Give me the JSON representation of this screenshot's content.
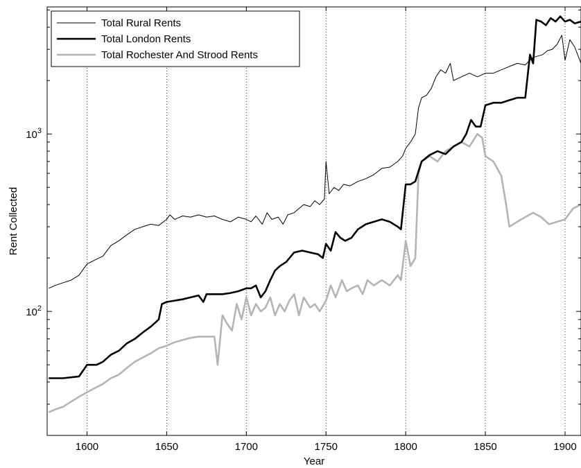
{
  "chart_data": {
    "type": "line",
    "title": "",
    "xlabel": "Year",
    "ylabel": "Rent Collected",
    "xlim": [
      1575,
      1910
    ],
    "ylim": [
      20,
      5200
    ],
    "yscale": "log",
    "x_ticks": [
      1600,
      1650,
      1700,
      1750,
      1800,
      1850,
      1900
    ],
    "x_tick_labels": [
      "1600",
      "1650",
      "1700",
      "1750",
      "1800",
      "1850",
      "1900"
    ],
    "y_ticks": [
      {
        "value": 100,
        "base": "10",
        "exp": "2"
      },
      {
        "value": 1000,
        "base": "10",
        "exp": "3"
      }
    ],
    "grid": "vertical dotted at x ticks",
    "legend_position": "top-left",
    "series": [
      {
        "name": "Total Rural Rents",
        "color": "#000000",
        "style": "thin",
        "x": [
          1576,
          1580,
          1585,
          1590,
          1595,
          1600,
          1605,
          1610,
          1615,
          1620,
          1625,
          1630,
          1635,
          1640,
          1645,
          1650,
          1652,
          1655,
          1660,
          1665,
          1670,
          1675,
          1680,
          1685,
          1690,
          1695,
          1700,
          1703,
          1706,
          1710,
          1713,
          1716,
          1720,
          1723,
          1726,
          1730,
          1733,
          1736,
          1740,
          1743,
          1746,
          1749,
          1750,
          1752,
          1755,
          1758,
          1761,
          1765,
          1770,
          1775,
          1780,
          1785,
          1790,
          1795,
          1798,
          1800,
          1803,
          1806,
          1808,
          1810,
          1813,
          1816,
          1819,
          1822,
          1825,
          1828,
          1830,
          1835,
          1840,
          1845,
          1850,
          1855,
          1860,
          1865,
          1870,
          1875,
          1878,
          1880,
          1883,
          1886,
          1889,
          1892,
          1895,
          1898,
          1900,
          1903,
          1906,
          1910
        ],
        "values": [
          135,
          140,
          145,
          150,
          160,
          185,
          195,
          205,
          235,
          250,
          270,
          290,
          300,
          310,
          305,
          330,
          350,
          330,
          345,
          340,
          350,
          340,
          345,
          330,
          320,
          340,
          330,
          320,
          345,
          310,
          360,
          330,
          340,
          310,
          350,
          360,
          380,
          400,
          390,
          420,
          400,
          430,
          700,
          460,
          500,
          480,
          520,
          510,
          540,
          560,
          590,
          640,
          650,
          700,
          750,
          830,
          900,
          1000,
          1400,
          1600,
          1650,
          1800,
          2100,
          2300,
          2200,
          2500,
          2000,
          2100,
          2200,
          2100,
          2200,
          2200,
          2300,
          2400,
          2500,
          2450,
          2600,
          2700,
          2750,
          2800,
          2950,
          3000,
          3200,
          3600,
          2600,
          3400,
          3100,
          2500
        ]
      },
      {
        "name": "Total London Rents",
        "color": "#000000",
        "style": "thick",
        "x": [
          1576,
          1585,
          1595,
          1598,
          1600,
          1606,
          1610,
          1615,
          1620,
          1625,
          1630,
          1635,
          1640,
          1645,
          1647,
          1650,
          1655,
          1660,
          1665,
          1670,
          1673,
          1675,
          1680,
          1685,
          1690,
          1695,
          1700,
          1703,
          1706,
          1709,
          1712,
          1715,
          1718,
          1721,
          1725,
          1730,
          1735,
          1740,
          1745,
          1748,
          1750,
          1753,
          1756,
          1759,
          1762,
          1766,
          1770,
          1775,
          1780,
          1785,
          1790,
          1795,
          1797,
          1800,
          1803,
          1806,
          1810,
          1815,
          1820,
          1825,
          1830,
          1835,
          1838,
          1841,
          1844,
          1847,
          1850,
          1855,
          1860,
          1865,
          1870,
          1875,
          1878,
          1880,
          1882,
          1885,
          1888,
          1891,
          1894,
          1897,
          1900,
          1903,
          1906,
          1910
        ],
        "values": [
          42,
          42,
          43,
          47,
          50,
          50,
          52,
          57,
          60,
          66,
          70,
          76,
          82,
          90,
          110,
          113,
          115,
          117,
          120,
          123,
          113,
          125,
          125,
          125,
          127,
          130,
          135,
          135,
          140,
          120,
          130,
          150,
          170,
          180,
          190,
          215,
          220,
          215,
          210,
          200,
          240,
          220,
          280,
          260,
          250,
          260,
          290,
          310,
          320,
          330,
          320,
          300,
          290,
          520,
          520,
          540,
          700,
          760,
          800,
          770,
          850,
          900,
          1000,
          1200,
          1100,
          1100,
          1450,
          1500,
          1500,
          1550,
          1600,
          1600,
          2800,
          2500,
          4400,
          4300,
          4100,
          4500,
          4300,
          4600,
          4300,
          4400,
          4200,
          4300
        ]
      },
      {
        "name": "Total Rochester And Strood Rents",
        "color": "#b4b4b4",
        "style": "thick",
        "x": [
          1576,
          1580,
          1585,
          1590,
          1595,
          1600,
          1605,
          1610,
          1615,
          1620,
          1625,
          1630,
          1635,
          1640,
          1645,
          1650,
          1655,
          1660,
          1665,
          1670,
          1675,
          1680,
          1682,
          1685,
          1688,
          1691,
          1694,
          1697,
          1700,
          1703,
          1706,
          1709,
          1712,
          1715,
          1718,
          1721,
          1724,
          1727,
          1730,
          1733,
          1736,
          1740,
          1743,
          1746,
          1750,
          1753,
          1756,
          1760,
          1763,
          1766,
          1770,
          1773,
          1776,
          1780,
          1785,
          1790,
          1795,
          1797,
          1800,
          1803,
          1806,
          1808,
          1810,
          1815,
          1820,
          1825,
          1830,
          1835,
          1840,
          1845,
          1848,
          1850,
          1855,
          1860,
          1863,
          1865,
          1870,
          1875,
          1880,
          1885,
          1890,
          1895,
          1900,
          1905,
          1910
        ],
        "values": [
          27,
          28,
          29,
          31,
          33,
          35,
          37,
          39,
          42,
          44,
          48,
          52,
          55,
          58,
          62,
          64,
          67,
          69,
          71,
          72,
          72,
          72,
          50,
          95,
          85,
          78,
          110,
          90,
          120,
          95,
          110,
          100,
          105,
          120,
          95,
          110,
          100,
          115,
          125,
          95,
          120,
          105,
          110,
          100,
          115,
          140,
          120,
          150,
          130,
          135,
          140,
          125,
          150,
          140,
          150,
          140,
          160,
          150,
          250,
          180,
          200,
          600,
          700,
          750,
          700,
          800,
          850,
          900,
          850,
          1000,
          950,
          750,
          700,
          580,
          400,
          300,
          320,
          340,
          360,
          340,
          310,
          320,
          330,
          380,
          400
        ]
      }
    ]
  }
}
